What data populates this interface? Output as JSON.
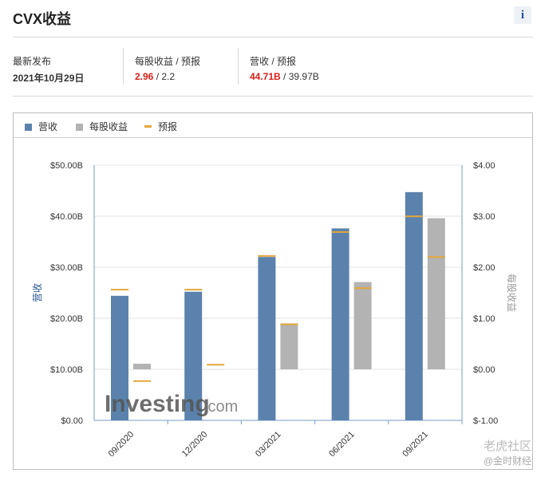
{
  "header": {
    "title": "CVX收益",
    "info_icon": "i"
  },
  "stats": {
    "latest_label": "最新发布",
    "latest_date": "2021年10月29日",
    "eps_label": "每股收益 / 预报",
    "eps_actual": "2.96",
    "eps_sep": " / ",
    "eps_forecast": "2.2",
    "rev_label": "营收 / 预报",
    "rev_actual": "44.71B",
    "rev_sep": " / ",
    "rev_forecast": "39.97B"
  },
  "colors": {
    "revenue": "#5b82ad",
    "eps": "#b3b3b3",
    "forecast": "#e2a73a",
    "red": "#d91e18"
  },
  "chart_data": {
    "type": "bar",
    "legend": [
      "营收",
      "每股收益",
      "预报"
    ],
    "categories": [
      "09/2020",
      "12/2020",
      "03/2021",
      "06/2021",
      "09/2021"
    ],
    "y_left": {
      "label": "营收",
      "ticks": [
        "$0.00",
        "$10.00B",
        "$20.00B",
        "$30.00B",
        "$40.00B",
        "$50.00B"
      ],
      "range": [
        0,
        50
      ]
    },
    "y_right": {
      "label": "每股收益",
      "ticks": [
        "$-1.00",
        "$0.00",
        "$1.00",
        "$2.00",
        "$3.00",
        "$4.00"
      ],
      "range": [
        -1,
        4
      ]
    },
    "series": [
      {
        "name": "营收",
        "axis": "left",
        "values": [
          24.4,
          25.2,
          32.0,
          37.6,
          44.71
        ]
      },
      {
        "name": "营收 预报",
        "axis": "left",
        "values": [
          25.6,
          25.6,
          32.2,
          36.9,
          39.97
        ]
      },
      {
        "name": "每股收益",
        "axis": "right",
        "values": [
          0.11,
          0.0,
          0.9,
          1.71,
          2.96
        ]
      },
      {
        "name": "每股收益 预报",
        "axis": "right",
        "values": [
          -0.23,
          0.09,
          0.88,
          1.59,
          2.2
        ]
      }
    ]
  },
  "watermark": {
    "logo_text": "Investing",
    "logo_suffix": ".com",
    "line1": "老虎社区",
    "line2": "@金时财经"
  }
}
